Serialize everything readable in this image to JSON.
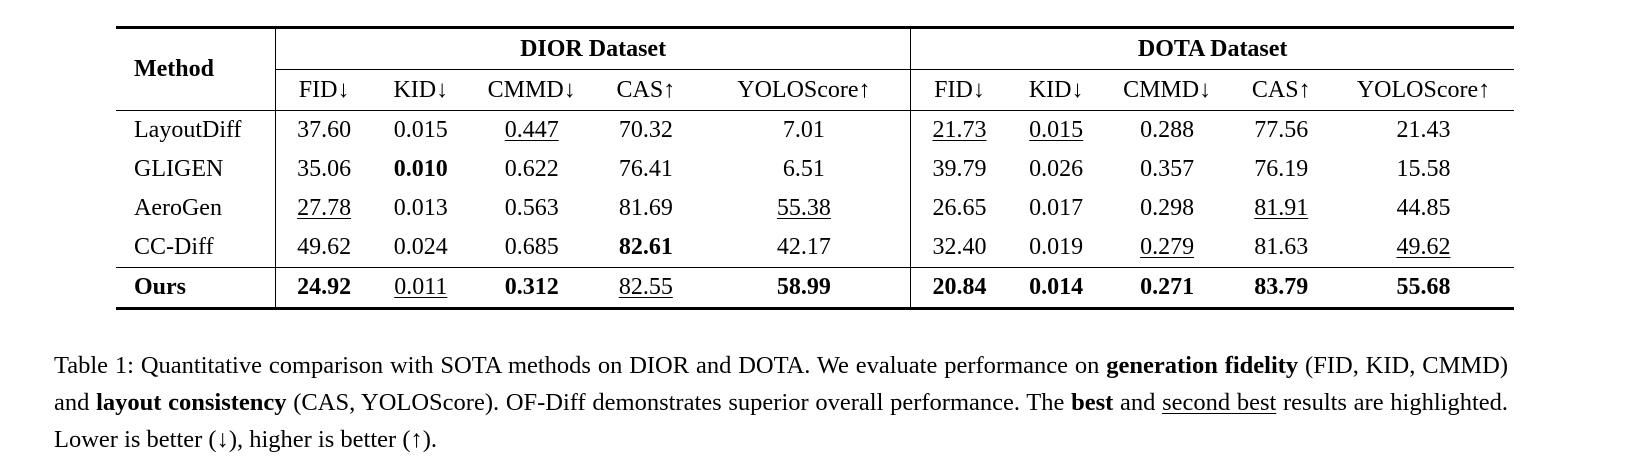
{
  "table": {
    "method_header": "Method",
    "groups": [
      "DIOR Dataset",
      "DOTA Dataset"
    ],
    "metrics": [
      "FID↓",
      "KID↓",
      "CMMD↓",
      "CAS↑",
      "YOLOScore↑"
    ],
    "rows": [
      {
        "method": "LayoutDiff",
        "values": [
          "37.60",
          "0.015",
          "0.447",
          "70.32",
          "7.01",
          "21.73",
          "0.015",
          "0.288",
          "77.56",
          "21.43"
        ],
        "styles": [
          "",
          "",
          "second",
          "",
          "",
          "second",
          "second",
          "",
          "",
          ""
        ]
      },
      {
        "method": "GLIGEN",
        "values": [
          "35.06",
          "0.010",
          "0.622",
          "76.41",
          "6.51",
          "39.79",
          "0.026",
          "0.357",
          "76.19",
          "15.58"
        ],
        "styles": [
          "",
          "best",
          "",
          "",
          "",
          "",
          "",
          "",
          "",
          ""
        ]
      },
      {
        "method": "AeroGen",
        "values": [
          "27.78",
          "0.013",
          "0.563",
          "81.69",
          "55.38",
          "26.65",
          "0.017",
          "0.298",
          "81.91",
          "44.85"
        ],
        "styles": [
          "second",
          "",
          "",
          "",
          "second",
          "",
          "",
          "",
          "second",
          ""
        ]
      },
      {
        "method": "CC-Diff",
        "values": [
          "49.62",
          "0.024",
          "0.685",
          "82.61",
          "42.17",
          "32.40",
          "0.019",
          "0.279",
          "81.63",
          "49.62"
        ],
        "styles": [
          "",
          "",
          "",
          "best",
          "",
          "",
          "",
          "second",
          "",
          "second"
        ]
      },
      {
        "method": "Ours",
        "values": [
          "24.92",
          "0.011",
          "0.312",
          "82.55",
          "58.99",
          "20.84",
          "0.014",
          "0.271",
          "83.79",
          "55.68"
        ],
        "styles": [
          "best",
          "second",
          "best",
          "second",
          "best",
          "best",
          "best",
          "best",
          "best",
          "best"
        ]
      }
    ]
  },
  "caption": {
    "part1": "Table 1: Quantitative comparison with SOTA methods on DIOR and DOTA. We evaluate performance on ",
    "bold1": "generation fidelity",
    "part2": " (FID, KID, CMMD) and ",
    "bold2": "layout consistency",
    "part3": " (CAS, YOLOScore). OF-Diff demonstrates superior overall performance. The ",
    "bold3": "best",
    "part4": " and ",
    "underline1": "second best",
    "part5": " results are highlighted. Lower is better (↓), higher is better (↑)."
  }
}
